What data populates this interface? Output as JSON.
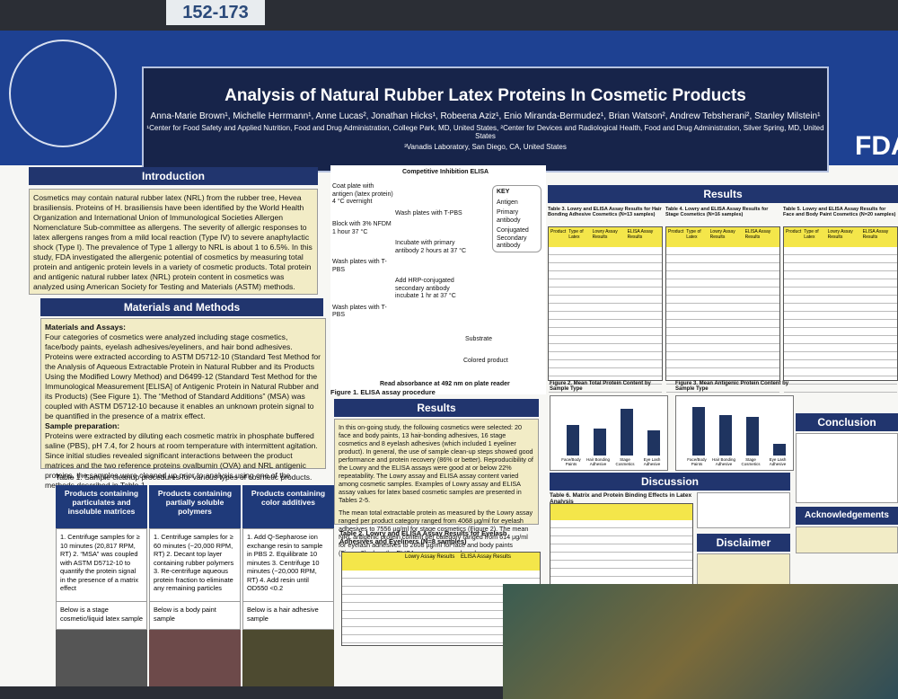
{
  "sign": "152-173",
  "header": {
    "title": "Analysis of Natural Rubber Latex Proteins In Cosmetic Products",
    "authors": "Anna-Marie Brown¹, Michelle Herrmann¹, Anne Lucas², Jonathan Hicks¹, Robeena Aziz¹, Enio Miranda-Bermudez¹, Brian Watson², Andrew Tebsherani², Stanley Milstein¹",
    "affiliation_1": "¹Center for Food Safety and Applied Nutrition, Food and Drug Administration, College Park, MD, United States, ²Center for Devices and Radiological Health, Food and Drug Administration, Silver Spring, MD, United States",
    "affiliation_2": "³Vanadis Laboratory, San Diego, CA, United States",
    "logo": "FDA"
  },
  "introduction": {
    "heading": "Introduction",
    "text": "Cosmetics may contain natural rubber latex (NRL) from the rubber tree, Hevea brasiliensis. Proteins of H. brasiliensis have been identified by the World Health Organization and International Union of Immunological Societies Allergen Nomenclature Sub-committee as allergens. The severity of allergic responses to latex allergens ranges from a mild local reaction (Type IV) to severe anaphylactic shock (Type I). The prevalence of Type 1 allergy to NRL is about 1 to 6.5%. In this study, FDA investigated the allergenic potential of cosmetics by measuring total protein and antigenic protein levels in a variety of cosmetic products. Total protein and antigenic natural rubber latex (NRL) protein content in cosmetics was analyzed using American Society for Testing and Materials (ASTM) methods."
  },
  "methods": {
    "heading": "Materials and Methods",
    "assays_title": "Materials and Assays:",
    "assays_text": "Four categories of cosmetics were analyzed including stage cosmetics, face/body paints, eyelash adhesives/eyeliners, and hair bond adhesives. Proteins were extracted according to ASTM D5712-10 (Standard Test Method for the Analysis of Aqueous Extractable Protein in Natural Rubber and its Products Using the Modified Lowry Method) and D6499-12 (Standard Test Method for the Immunological Measurement [ELISA] of Antigenic Protein in Natural Rubber and its Products) (See Figure 1). The “Method of Standard Additions” (MSA) was coupled with ASTM D5712-10 because it enables an unknown protein signal to be quantified in the presence of a matrix effect.",
    "prep_title": "Sample preparation:",
    "prep_text": "Proteins were extracted by diluting each cosmetic matrix in phosphate buffered saline (PBS), pH 7.4, for 2 hours at room temperature with intermittent agitation. Since initial studies revealed significant interactions between the product matrices and the two reference proteins ovalbumin (OVA) and NRL antigenic proteins, the samples were cleaned up prior to analysis using one of the methods described in Table 1."
  },
  "table1": {
    "caption": "Table 1: Sample cleanup procedures for various types of cosmetic products.",
    "columns": [
      "Products containing particulates and insoluble matrices",
      "Products containing partially soluble polymers",
      "Products containing color additives"
    ],
    "cells": [
      "1. Centrifuge samples for ≥ 10 minutes (20,817 RPM, RT) 2. “MSA” was coupled with ASTM D5712-10 to quantify the protein signal in the presence of a matrix effect",
      "1. Centrifuge samples for ≥ 60 minutes (~20,000 RPM, RT) 2. Decant top layer containing rubber polymers 3. Re-centrifuge aqueous protein fraction to eliminate any remaining particles",
      "1. Add Q-Sepharose ion exchange resin to sample in PBS 2. Equilibrate 10 minutes 3. Centrifuge 10 minutes (~20,000 RPM, RT) 4. Add resin until OD550 <0.2"
    ],
    "notes": [
      "Below is a stage cosmetic/liquid latex sample",
      "Below is a body paint sample",
      "Below is a hair adhesive sample"
    ]
  },
  "elisa": {
    "title": "Competitive Inhibition ELISA",
    "steps": [
      "Coat plate with antigen (latex protein) 4 °C overnight",
      "Wash plates with T-PBS",
      "Block with 3% NFDM 1 hour 37 °C",
      "Incubate with primary antibody 2 hours at 37 °C",
      "Wash plates with T-PBS",
      "Add HRP-conjugated secondary antibody incubate 1 hr at 37 °C",
      "Wash plates with T-PBS"
    ],
    "substrate": "Substrate",
    "colored": "Colored product",
    "key": [
      "KEY",
      "Antigen",
      "Primary antibody",
      "Conjugated Secondary antibody"
    ],
    "read": "Read absorbance at 492 nm on plate reader",
    "caption": "Figure 1. ELISA assay procedure"
  },
  "results": {
    "heading": "Results",
    "paragraphs": [
      "In this on-going study, the following cosmetics were selected: 20 face and body paints, 13 hair-bonding adhesives, 16 stage cosmetics and 8 eyelash adhesives (which included 1 eyeliner product). In general, the use of sample clean-up steps showed good performance and protein recovery (86% or better). Reproducibility of the Lowry and the ELISA assays were good at or below 22% repeatability. The Lowry assay and ELISA assay content varied among cosmetic samples. Examples of Lowry assay and ELISA assay values for latex based cosmetic samples are presented in Tables 2-5.",
      "The mean total extractable protein as measured by the Lowry assay ranged per product category ranged from 4068 µg/ml for eyelash adhesives to 7556 µg/ml for stage cosmetics (Figure 2). The mean NRL antigenic protein content per category ranged from 614 µg/ml for eyelash adhesives to 2608 µg/ml for face and body paints (Figure 3) when the ELISA assay was employed."
    ],
    "table2_caption": "Table 2. Lowry and ELISA Assay Results for Eyelash Adhesives and Eyeliners (N=8 samples)",
    "table2_groups": [
      "Lowry Assay Results",
      "ELISA Assay Results"
    ]
  },
  "results_right": {
    "heading": "Results",
    "table3_caption": "Table 3. Lowry and ELISA Assay Results for Hair Bonding Adhesive Cosmetics (N=13 samples)",
    "table4_caption": "Table 4. Lowry and ELISA Assay Results for Stage Cosmetics (N=16 samples)",
    "table5_caption": "Table 5. Lowry and ELISA Assay Results for Face and Body Paint Cosmetics (N=20 samples)",
    "table_columns": [
      "Product",
      "Type of Latex",
      "Lowry Assay Results",
      "ELISA Assay Results"
    ],
    "table6_caption": "Table 6. Matrix and Protein Binding Effects in Latex Analysis"
  },
  "figures": [
    {
      "caption": "Figure 2. Mean Total Protein Content by Sample Type",
      "categories": [
        "Face/Body Paints",
        "Hair Bonding Adhesive",
        "Stage Cosmetics",
        "Eye Lash Adhesive"
      ],
      "values": [
        5000,
        4300,
        7556,
        4068
      ],
      "ylim": [
        0,
        9000
      ]
    },
    {
      "caption": "Figure 3. Mean Antigenic Protein Content by Sample Type",
      "categories": [
        "Face/Body Paints",
        "Hair Bonding Adhesive",
        "Stage Cosmetics",
        "Eye Lash Adhesive"
      ],
      "values": [
        2608,
        2200,
        2100,
        614
      ],
      "ylim": [
        0,
        3000
      ]
    }
  ],
  "discussion": {
    "heading": "Discussion"
  },
  "conclusion": {
    "heading": "Conclusion"
  },
  "disclaimer": {
    "heading": "Disclaimer"
  },
  "acknowledgements": {
    "heading": "Acknowledgements"
  }
}
